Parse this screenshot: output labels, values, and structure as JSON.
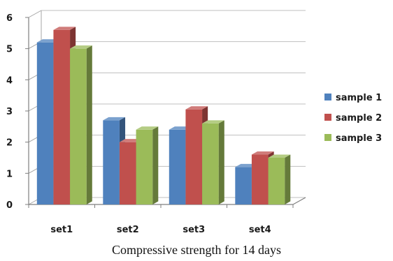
{
  "chart_data": {
    "type": "bar",
    "categories": [
      "set1",
      "set2",
      "set3",
      "set4"
    ],
    "series": [
      {
        "name": "sample 1",
        "values": [
          5.2,
          2.7,
          2.4,
          1.2
        ]
      },
      {
        "name": "sample 2",
        "values": [
          5.6,
          2.0,
          3.05,
          1.6
        ]
      },
      {
        "name": "sample 3",
        "values": [
          5.0,
          2.4,
          2.6,
          1.5
        ]
      }
    ],
    "yticks": [
      "0",
      "1",
      "2",
      "3",
      "4",
      "5",
      "6"
    ],
    "ylim": [
      0,
      6
    ],
    "title": "Compressive strength for 14 days",
    "xlabel": "",
    "ylabel": "",
    "grid": true,
    "legend": "right",
    "style": "3d-column",
    "colors": {
      "sample 1": "#4F81BD",
      "sample 2": "#C0504D",
      "sample 3": "#9BBB59"
    }
  }
}
